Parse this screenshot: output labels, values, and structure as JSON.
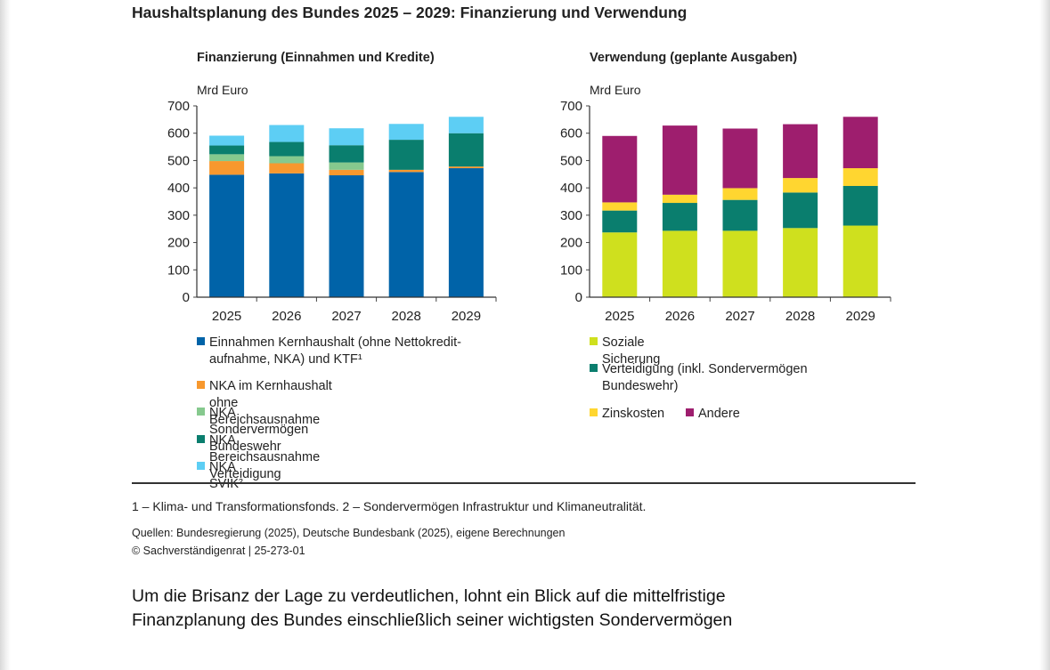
{
  "title": "Haushaltsplanung des Bundes 2025 – 2029: Finanzierung und Verwendung",
  "chart_data": [
    {
      "type": "bar",
      "stacked": true,
      "title": "Finanzierung (Einnahmen und Kredite)",
      "ylabel": "Mrd Euro",
      "categories": [
        "2025",
        "2026",
        "2027",
        "2028",
        "2029"
      ],
      "ylim": [
        0,
        700
      ],
      "yticks": [
        "0",
        "100",
        "200",
        "300",
        "400",
        "500",
        "600",
        "700"
      ],
      "series": [
        {
          "name": "Einnahmen Kernhaushalt (ohne Nettokredit-aufnahme, NKA) und KTF¹",
          "color": "#0063A8",
          "values": [
            448,
            453,
            446,
            458,
            472
          ]
        },
        {
          "name": "NKA im Kernhaushalt ohne Bereichsausnahme",
          "color": "#F7982E",
          "values": [
            50,
            37,
            20,
            8,
            6
          ]
        },
        {
          "name": "NKA Sondervermögen Bundeswehr",
          "color": "#86C98E",
          "values": [
            25,
            26,
            27,
            0,
            0
          ]
        },
        {
          "name": "NKA Bereichsausnahme Verteidigung",
          "color": "#0A7E6E",
          "values": [
            32,
            52,
            63,
            110,
            122
          ]
        },
        {
          "name": "NKA SVIK²",
          "color": "#5DCEF4",
          "values": [
            36,
            62,
            62,
            58,
            60
          ]
        }
      ],
      "legend_position": "bottom"
    },
    {
      "type": "bar",
      "stacked": true,
      "title": "Verwendung (geplante Ausgaben)",
      "ylabel": "Mrd Euro",
      "categories": [
        "2025",
        "2026",
        "2027",
        "2028",
        "2029"
      ],
      "ylim": [
        0,
        700
      ],
      "yticks": [
        "0",
        "100",
        "200",
        "300",
        "400",
        "500",
        "600",
        "700"
      ],
      "series": [
        {
          "name": "Soziale Sicherung",
          "color": "#CFE01E",
          "values": [
            237,
            243,
            243,
            253,
            262
          ]
        },
        {
          "name": "Verteidigung (inkl. Sondervermögen Bundeswehr)",
          "color": "#0A7E6E",
          "values": [
            80,
            102,
            113,
            130,
            145
          ]
        },
        {
          "name": "Zinskosten",
          "color": "#FFD630",
          "values": [
            30,
            30,
            43,
            53,
            65
          ]
        },
        {
          "name": "Andere",
          "color": "#9E1E6E",
          "values": [
            243,
            253,
            218,
            197,
            188
          ]
        }
      ],
      "legend_position": "bottom"
    }
  ],
  "footnote": "1 – Klima- und Transformationsfonds.  2 – Sondervermögen Infrastruktur und Klimaneutralität.",
  "sources": "Quellen: Bundesregierung (2025), Deutsche Bundesbank (2025), eigene Berechnungen",
  "copyright": "© Sachverständigenrat  |  25-273-01",
  "body_text": [
    "Um die Brisanz der Lage zu verdeutlichen, lohnt ein Blick auf die mittelfristige",
    "Finanzplanung des Bundes einschließlich seiner wichtigsten Sondervermögen"
  ]
}
